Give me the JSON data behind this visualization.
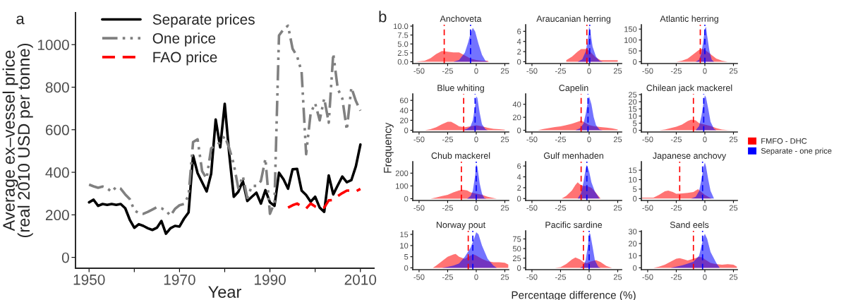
{
  "chart_data": [
    {
      "type": "line",
      "xlabel": "Year",
      "ylabel": "Average ex–vessel price\n(real 2010 USD per tonne)",
      "annotations": [
        "a"
      ],
      "legend": "top left",
      "xlim": [
        1947,
        2013
      ],
      "ylim": [
        -51,
        1150
      ],
      "xticks": [
        1950,
        {
          "value": 1960,
          "label": null
        },
        1970,
        {
          "value": 1980,
          "label": null
        },
        1990,
        {
          "value": 2000,
          "label": null
        },
        2010
      ],
      "yticks": [
        0,
        200,
        400,
        600,
        800,
        1000
      ],
      "grid": false,
      "x": [
        1950,
        1951,
        1952,
        1953,
        1954,
        1955,
        1956,
        1957,
        1958,
        1959,
        1960,
        1961,
        1962,
        1963,
        1964,
        1965,
        1966,
        1967,
        1968,
        1969,
        1970,
        1971,
        1972,
        1973,
        1974,
        1975,
        1976,
        1977,
        1978,
        1979,
        1980,
        1981,
        1982,
        1983,
        1984,
        1985,
        1986,
        1987,
        1988,
        1989,
        1990,
        1991,
        1992,
        1993,
        1994,
        1995,
        1996,
        1997,
        1998,
        1999,
        2000,
        2001,
        2002,
        2003,
        2004,
        2005,
        2006,
        2007,
        2008,
        2009,
        2010
      ],
      "series": [
        {
          "name": "Separate prices",
          "color": "#000000",
          "line_style": "solid",
          "values": [
            259,
            271,
            242,
            251,
            247,
            251,
            247,
            251,
            231,
            177,
            139,
            156,
            148,
            137,
            129,
            139,
            171,
            111,
            137,
            148,
            145,
            182,
            211,
            479,
            396,
            353,
            310,
            393,
            648,
            517,
            722,
            485,
            285,
            308,
            359,
            265,
            285,
            304,
            253,
            316,
            259,
            242,
            398,
            367,
            323,
            414,
            416,
            314,
            293,
            262,
            285,
            234,
            214,
            385,
            296,
            339,
            380,
            353,
            363,
            428,
            530
          ]
        },
        {
          "name": "One price",
          "color": "#808080",
          "line_style": "dashdot",
          "values": [
            342,
            334,
            327,
            333,
            325,
            308,
            331,
            323,
            296,
            274,
            222,
            208,
            205,
            214,
            225,
            236,
            231,
            220,
            196,
            228,
            245,
            251,
            291,
            542,
            555,
            405,
            371,
            513,
            525,
            542,
            570,
            513,
            439,
            325,
            382,
            279,
            336,
            336,
            359,
            464,
            205,
            257,
            1043,
            1072,
            1089,
            981,
            946,
            872,
            485,
            678,
            724,
            644,
            747,
            633,
            958,
            792,
            747,
            599,
            798,
            735,
            690
          ]
        },
        {
          "name": "FAO price",
          "color": "#ff0000",
          "line_style": "dashed",
          "x": [
            1994,
            1995,
            1996,
            1997,
            1998,
            1999,
            2000,
            2001,
            2002,
            2003,
            2004,
            2005,
            2006,
            2007,
            2008,
            2009,
            2010
          ],
          "values": [
            234,
            245,
            253,
            239,
            230,
            253,
            239,
            230,
            234,
            268,
            270,
            288,
            302,
            314,
            314,
            310,
            322
          ]
        }
      ]
    },
    {
      "type": "area",
      "title": "Anchoveta",
      "annotations": [
        "b"
      ],
      "xlim": [
        -55.5,
        28.4
      ],
      "xticks": [
        -50,
        -25,
        0,
        25
      ],
      "ylim": [
        -0.5,
        10.4
      ],
      "yticks": [
        {
          "value": 0,
          "label": "0.0"
        },
        2.5,
        {
          "value": 5,
          "label": "5.0"
        },
        7.5,
        {
          "value": 10,
          "label": "10.0"
        }
      ],
      "series": [
        {
          "color": "#ff0000",
          "x": [
            -53,
            -45,
            -40,
            -35,
            -30,
            -25,
            -20,
            -15,
            -10,
            -5,
            0,
            5,
            10,
            11
          ],
          "values": [
            0,
            0.3,
            1.0,
            2.2,
            3.0,
            2.8,
            2.6,
            2.6,
            1.8,
            0.9,
            0.5,
            0.3,
            0.3,
            0
          ]
        },
        {
          "color": "#0000ff",
          "x": [
            -20,
            -15,
            -10,
            -7,
            -5,
            -3,
            -1,
            2,
            5,
            8,
            10
          ],
          "values": [
            0,
            0.5,
            2.5,
            5.5,
            8,
            9.5,
            8.5,
            5,
            2,
            0.3,
            0
          ]
        }
      ],
      "ref_lines": [
        {
          "axis": "x",
          "value": -28,
          "color": "#ff0000",
          "line_style": "dashed"
        },
        {
          "axis": "x",
          "value": -5,
          "color": "#0000ff",
          "line_style": "dashed"
        }
      ]
    },
    {
      "type": "area",
      "title": "Araucanian herring",
      "xlim": [
        -55.5,
        28.4
      ],
      "xticks": [
        -50,
        -25,
        0,
        25
      ],
      "ylim": [
        -0.35,
        7.3
      ],
      "yticks": [
        0,
        2,
        4,
        6
      ],
      "series": [
        {
          "color": "#ff0000",
          "x": [
            -20,
            -15,
            -10,
            -7,
            -4,
            -2,
            0,
            3,
            6,
            10,
            25
          ],
          "values": [
            0.3,
            1.0,
            2.0,
            2.5,
            2.5,
            2.5,
            2.2,
            1.5,
            0.8,
            0.3,
            0.3
          ]
        },
        {
          "color": "#0000ff",
          "x": [
            -10,
            -6,
            -3,
            -1,
            0,
            1,
            3,
            6,
            9,
            12
          ],
          "values": [
            0,
            0.5,
            2,
            4.5,
            7,
            6,
            3,
            1,
            0.2,
            0
          ]
        }
      ],
      "ref_lines": [
        {
          "axis": "x",
          "value": -2,
          "color": "#ff0000",
          "line_style": "dashed"
        },
        {
          "axis": "x",
          "value": 0.5,
          "color": "#0000ff",
          "line_style": "dashed"
        }
      ]
    },
    {
      "type": "area",
      "title": "Atlantic herring",
      "xlim": [
        -55.5,
        28.4
      ],
      "xticks": [
        -50,
        -25,
        0,
        25
      ],
      "ylim": [
        -8,
        170
      ],
      "yticks": [
        0,
        50,
        100,
        150
      ],
      "series": [
        {
          "color": "#ff0000",
          "x": [
            -25,
            -20,
            -15,
            -10,
            -5,
            -2,
            0,
            5,
            10,
            15,
            20
          ],
          "values": [
            0,
            5,
            15,
            35,
            55,
            60,
            55,
            35,
            15,
            5,
            0
          ]
        },
        {
          "color": "#0000ff",
          "x": [
            -8,
            -5,
            -3,
            -1,
            0,
            1,
            2,
            4,
            6,
            8
          ],
          "values": [
            0,
            10,
            40,
            110,
            150,
            160,
            120,
            50,
            10,
            0
          ]
        }
      ],
      "ref_lines": [
        {
          "axis": "x",
          "value": -4,
          "color": "#ff0000",
          "line_style": "dashed"
        },
        {
          "axis": "x",
          "value": 0,
          "color": "#0000ff",
          "line_style": "dashed"
        }
      ]
    },
    {
      "type": "area",
      "title": "Blue whiting",
      "xlim": [
        -55.5,
        28.4
      ],
      "xticks": [
        -50,
        -25,
        0,
        25
      ],
      "ylim": [
        -3.5,
        73
      ],
      "yticks": [
        0,
        20,
        40,
        60
      ],
      "series": [
        {
          "color": "#ff0000",
          "x": [
            -45,
            -40,
            -35,
            -30,
            -25,
            -22,
            -18,
            -15,
            -10,
            -5,
            0,
            5,
            10,
            15,
            20,
            25
          ],
          "values": [
            0,
            2,
            6,
            12,
            17,
            17,
            12,
            8,
            6,
            8,
            10,
            8,
            5,
            3,
            2,
            1
          ]
        },
        {
          "color": "#0000ff",
          "x": [
            -12,
            -8,
            -5,
            -3,
            -1,
            0,
            1,
            3,
            5,
            8,
            10
          ],
          "values": [
            0,
            3,
            8,
            20,
            50,
            68,
            65,
            35,
            12,
            2,
            0
          ]
        }
      ],
      "ref_lines": [
        {
          "axis": "x",
          "value": -11,
          "color": "#ff0000",
          "line_style": "dashed"
        },
        {
          "axis": "x",
          "value": -1,
          "color": "#0000ff",
          "line_style": "dashed"
        }
      ]
    },
    {
      "type": "area",
      "title": "Capelin",
      "xlim": [
        -55.5,
        28.4
      ],
      "xticks": [
        -50,
        -25,
        0,
        25
      ],
      "ylim": [
        -2.7,
        56
      ],
      "yticks": [
        0,
        20,
        40
      ],
      "series": [
        {
          "color": "#ff0000",
          "x": [
            -45,
            -40,
            -30,
            -25,
            -20,
            -15,
            -10,
            -7,
            -5,
            0,
            5,
            10,
            15,
            20,
            25
          ],
          "values": [
            0,
            2,
            5,
            6,
            8,
            10,
            13,
            15,
            13,
            8,
            6,
            5,
            4,
            3,
            1
          ]
        },
        {
          "color": "#0000ff",
          "x": [
            -12,
            -8,
            -5,
            -3,
            -1,
            0,
            2,
            4,
            6,
            9,
            12
          ],
          "values": [
            0,
            3,
            10,
            25,
            45,
            52,
            40,
            20,
            8,
            1,
            0
          ]
        }
      ],
      "ref_lines": [
        {
          "axis": "x",
          "value": -7,
          "color": "#ff0000",
          "line_style": "dashed"
        },
        {
          "axis": "x",
          "value": -1,
          "color": "#0000ff",
          "line_style": "dashed"
        }
      ]
    },
    {
      "type": "area",
      "title": "Chilean jack mackerel",
      "xlim": [
        -55.5,
        28.4
      ],
      "xticks": [
        -50,
        -25,
        0,
        25
      ],
      "ylim": [
        -1.2,
        25.5
      ],
      "yticks": [
        0,
        5,
        10,
        15,
        20,
        25
      ],
      "series": [
        {
          "color": "#ff0000",
          "x": [
            -40,
            -35,
            -30,
            -25,
            -20,
            -15,
            -12,
            -8,
            -5,
            0,
            5,
            10,
            15,
            20,
            25
          ],
          "values": [
            0,
            0.5,
            1.5,
            2.5,
            4,
            6.5,
            7.5,
            7,
            5,
            4,
            3,
            1.5,
            0.5,
            0.2,
            0
          ]
        },
        {
          "color": "#0000ff",
          "x": [
            -8,
            -5,
            -3,
            -1,
            0,
            1,
            3,
            5,
            8,
            10
          ],
          "values": [
            0,
            3,
            10,
            20,
            24.5,
            23,
            15,
            6,
            1,
            0
          ]
        }
      ],
      "ref_lines": [
        {
          "axis": "x",
          "value": -10,
          "color": "#ff0000",
          "line_style": "dashed"
        },
        {
          "axis": "x",
          "value": -1,
          "color": "#0000ff",
          "line_style": "dashed"
        }
      ]
    },
    {
      "type": "area",
      "title": "Chub mackerel",
      "ylabel": "Frequency",
      "xlim": [
        -55.5,
        28.4
      ],
      "xticks": [
        -50,
        -25,
        0,
        25
      ],
      "ylim": [
        -14,
        290
      ],
      "yticks": [
        0,
        100,
        200
      ],
      "series": [
        {
          "color": "#ff0000",
          "x": [
            -40,
            -35,
            -30,
            -25,
            -20,
            -15,
            -12,
            -8,
            -5,
            0,
            5,
            10,
            15,
            18
          ],
          "values": [
            0,
            10,
            20,
            30,
            50,
            65,
            70,
            65,
            50,
            40,
            30,
            15,
            5,
            0
          ]
        },
        {
          "color": "#0000ff",
          "x": [
            -8,
            -5,
            -3,
            -1,
            0,
            1,
            3,
            5,
            7,
            9
          ],
          "values": [
            0,
            20,
            60,
            180,
            270,
            250,
            120,
            40,
            5,
            0
          ]
        }
      ],
      "ref_lines": [
        {
          "axis": "x",
          "value": -13,
          "color": "#ff0000",
          "line_style": "dashed"
        },
        {
          "axis": "x",
          "value": 0,
          "color": "#0000ff",
          "line_style": "dashed"
        }
      ]
    },
    {
      "type": "area",
      "title": "Gulf menhaden",
      "xlim": [
        -55.5,
        28.4
      ],
      "xticks": [
        -50,
        -25,
        0,
        25
      ],
      "ylim": [
        -0.35,
        6.8
      ],
      "yticks": [
        0,
        2,
        4,
        6
      ],
      "series": [
        {
          "color": "#ff0000",
          "x": [
            -24,
            -20,
            -15,
            -12,
            -10,
            -8,
            -5,
            -2,
            2,
            5,
            8,
            10
          ],
          "values": [
            0,
            0.5,
            1.5,
            2.5,
            3.0,
            2.6,
            2.3,
            2.3,
            2.0,
            1.3,
            0.5,
            0
          ]
        },
        {
          "color": "#0000ff",
          "x": [
            -10,
            -7,
            -5,
            -3,
            -2,
            0,
            2,
            5,
            9
          ],
          "values": [
            0,
            1,
            3,
            5.5,
            6.2,
            5,
            3,
            1.3,
            0
          ]
        }
      ],
      "ref_lines": [
        {
          "axis": "x",
          "value": -7,
          "color": "#ff0000",
          "line_style": "dashed"
        },
        {
          "axis": "x",
          "value": -2,
          "color": "#0000ff",
          "line_style": "dashed"
        }
      ]
    },
    {
      "type": "area",
      "title": "Japanese anchovy",
      "legend": "right",
      "xlim": [
        -55.5,
        28.4
      ],
      "xticks": [
        -50,
        -25,
        0,
        25
      ],
      "ylim": [
        -1,
        19.5
      ],
      "yticks": [
        0,
        5,
        10,
        15
      ],
      "series": [
        {
          "name": "FMFO - DHC",
          "color": "#ff0000",
          "x": [
            -55,
            -45,
            -40,
            -35,
            -32,
            -28,
            -25,
            -20,
            -15,
            -10,
            -6,
            -3,
            0,
            3,
            6
          ],
          "values": [
            0.5,
            0.5,
            2,
            3.8,
            4.2,
            3.5,
            2.5,
            2.7,
            3,
            3.5,
            5,
            3.5,
            2,
            1,
            0
          ]
        },
        {
          "name": "Separate - one price",
          "color": "#0000ff",
          "x": [
            -12,
            -8,
            -5,
            -3,
            -1,
            0,
            1,
            3,
            5,
            8
          ],
          "values": [
            0,
            1,
            4,
            10,
            17,
            19,
            17,
            10,
            4,
            0
          ]
        }
      ],
      "ref_lines": [
        {
          "axis": "x",
          "value": -22,
          "color": "#ff0000",
          "line_style": "dashed"
        },
        {
          "axis": "x",
          "value": -2,
          "color": "#0000ff",
          "line_style": "dashed"
        }
      ]
    },
    {
      "type": "area",
      "title": "Norway pout",
      "xlim": [
        -55.5,
        28.4
      ],
      "xticks": [
        -50,
        -25,
        0,
        25
      ],
      "ylim": [
        -0.8,
        16.6
      ],
      "yticks": [
        0,
        5,
        10,
        15
      ],
      "series": [
        {
          "color": "#ff0000",
          "x": [
            -38,
            -35,
            -30,
            -25,
            -20,
            -18,
            -15,
            -10,
            -5,
            -2,
            0,
            5,
            10,
            15,
            20,
            25,
            28
          ],
          "values": [
            0,
            1,
            3,
            5,
            6,
            6.2,
            5,
            4,
            5.5,
            6,
            5.5,
            4,
            3,
            2.5,
            2.5,
            2.3,
            1.5
          ]
        },
        {
          "color": "#0000ff",
          "x": [
            -30,
            -25,
            -20,
            -15,
            -10,
            -5,
            -2,
            0,
            2,
            5,
            10,
            15,
            18
          ],
          "values": [
            0,
            0.5,
            1,
            2,
            5,
            9,
            13,
            16,
            15,
            10,
            4,
            1,
            0
          ]
        }
      ],
      "ref_lines": [
        {
          "axis": "x",
          "value": -7,
          "color": "#ff0000",
          "line_style": "dashed"
        },
        {
          "axis": "x",
          "value": -3,
          "color": "#0000ff",
          "line_style": "dashed"
        }
      ]
    },
    {
      "type": "area",
      "title": "Pacific sardine",
      "xlabel": "Percentage difference (%)",
      "xlim": [
        -55.5,
        28.4
      ],
      "xticks": [
        -50,
        -25,
        0,
        25
      ],
      "ylim": [
        -4.5,
        96
      ],
      "yticks": [
        0,
        25,
        50,
        75
      ],
      "series": [
        {
          "color": "#ff0000",
          "x": [
            -30,
            -25,
            -20,
            -15,
            -12,
            -8,
            -5,
            -2,
            0,
            3,
            6,
            10,
            15,
            20
          ],
          "values": [
            0,
            2,
            10,
            22,
            27,
            22,
            15,
            12,
            15,
            18,
            20,
            15,
            5,
            0
          ]
        },
        {
          "color": "#0000ff",
          "x": [
            -8,
            -5,
            -3,
            -1,
            0,
            1,
            3,
            5,
            8,
            10
          ],
          "values": [
            0,
            5,
            20,
            60,
            90,
            88,
            55,
            20,
            3,
            0
          ]
        }
      ],
      "ref_lines": [
        {
          "axis": "x",
          "value": -5,
          "color": "#ff0000",
          "line_style": "dashed"
        },
        {
          "axis": "x",
          "value": 0,
          "color": "#0000ff",
          "line_style": "dashed"
        }
      ]
    },
    {
      "type": "area",
      "title": "Sand eels",
      "xlim": [
        -55.5,
        28.4
      ],
      "xticks": [
        -50,
        -25,
        0,
        25
      ],
      "ylim": [
        -1.5,
        30.5
      ],
      "yticks": [
        0,
        10,
        20,
        30
      ],
      "series": [
        {
          "color": "#ff0000",
          "x": [
            -45,
            -40,
            -35,
            -30,
            -25,
            -22,
            -18,
            -15,
            -10,
            -5,
            -2,
            0,
            5,
            10,
            15,
            20,
            25,
            28
          ],
          "values": [
            0,
            1,
            2.5,
            5,
            7.5,
            8,
            7,
            6,
            7.5,
            9,
            8.5,
            7,
            4,
            3,
            2.5,
            3,
            2.5,
            1
          ]
        },
        {
          "color": "#0000ff",
          "x": [
            -30,
            -25,
            -20,
            -15,
            -10,
            -5,
            -3,
            -1,
            0,
            2,
            5,
            10,
            13
          ],
          "values": [
            0,
            1,
            2,
            3.5,
            5,
            10,
            18,
            26,
            28,
            24,
            13,
            4,
            0
          ]
        }
      ],
      "ref_lines": [
        {
          "axis": "x",
          "value": -10,
          "color": "#ff0000",
          "line_style": "dashed"
        },
        {
          "axis": "x",
          "value": -2,
          "color": "#0000ff",
          "line_style": "dashed"
        }
      ]
    }
  ]
}
